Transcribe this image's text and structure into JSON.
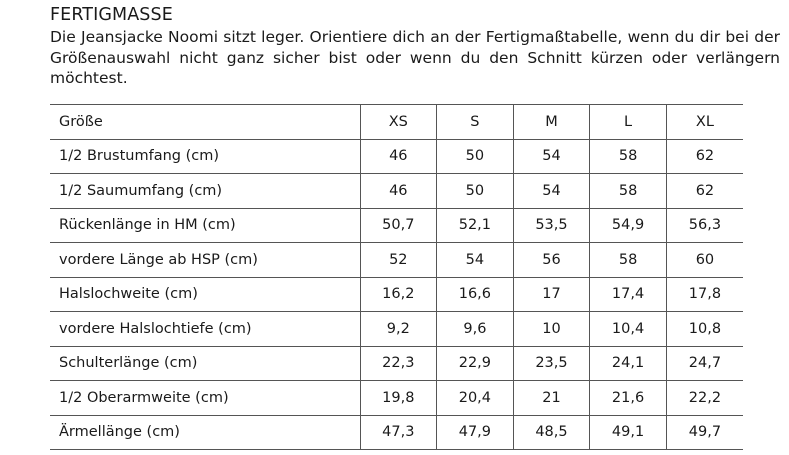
{
  "title": "FERTIGMASSE",
  "intro": "Die Jeansjacke Noomi sitzt leger. Orientiere dich an der Fertigmaßtabelle, wenn du dir bei der Größenauswahl nicht ganz sicher bist oder wenn du den Schnitt kürzen oder verlängern möchtest.",
  "table": {
    "header": {
      "label": "Größe",
      "sizes": [
        "XS",
        "S",
        "M",
        "L",
        "XL"
      ]
    },
    "rows": [
      {
        "label": "1/2 Brustumfang (cm)",
        "values": [
          "46",
          "50",
          "54",
          "58",
          "62"
        ]
      },
      {
        "label": "1/2 Saumumfang (cm)",
        "values": [
          "46",
          "50",
          "54",
          "58",
          "62"
        ]
      },
      {
        "label": "Rückenlänge in HM (cm)",
        "values": [
          "50,7",
          "52,1",
          "53,5",
          "54,9",
          "56,3"
        ]
      },
      {
        "label": "vordere Länge ab HSP (cm)",
        "values": [
          "52",
          "54",
          "56",
          "58",
          "60"
        ]
      },
      {
        "label": "Halslochweite (cm)",
        "values": [
          "16,2",
          "16,6",
          "17",
          "17,4",
          "17,8"
        ]
      },
      {
        "label": "vordere Halslochtiefe (cm)",
        "values": [
          "9,2",
          "9,6",
          "10",
          "10,4",
          "10,8"
        ]
      },
      {
        "label": "Schulterlänge (cm)",
        "values": [
          "22,3",
          "22,9",
          "23,5",
          "24,1",
          "24,7"
        ]
      },
      {
        "label": "1/2 Oberarmweite (cm)",
        "values": [
          "19,8",
          "20,4",
          "21",
          "21,6",
          "22,2"
        ]
      },
      {
        "label": "Ärmellänge (cm)",
        "values": [
          "47,3",
          "47,9",
          "48,5",
          "49,1",
          "49,7"
        ]
      }
    ]
  }
}
